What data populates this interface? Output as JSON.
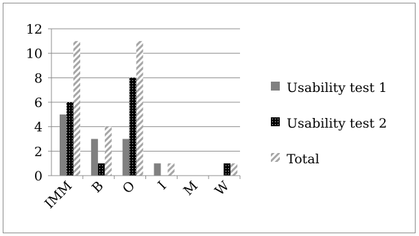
{
  "chart_data": {
    "type": "bar",
    "categories": [
      "IMM",
      "B",
      "O",
      "I",
      "M",
      "W"
    ],
    "series": [
      {
        "name": "Usability test 1",
        "values": [
          5,
          3,
          3,
          1,
          0,
          0
        ],
        "color": "#808080",
        "pattern": "solid"
      },
      {
        "name": "Usability test 2",
        "values": [
          6,
          1,
          8,
          0,
          0,
          1
        ],
        "color": "#000000",
        "pattern": "dotted"
      },
      {
        "name": "Total",
        "values": [
          11,
          4,
          11,
          1,
          0,
          1
        ],
        "color": "#a6a6a6",
        "pattern": "diagonal-stripes"
      }
    ],
    "yticks": [
      "0",
      "2",
      "4",
      "6",
      "8",
      "10",
      "12"
    ],
    "ylim": [
      0,
      12
    ],
    "title": "",
    "xlabel": "",
    "ylabel": "",
    "grid": "horizontal",
    "legend_position": "right"
  }
}
